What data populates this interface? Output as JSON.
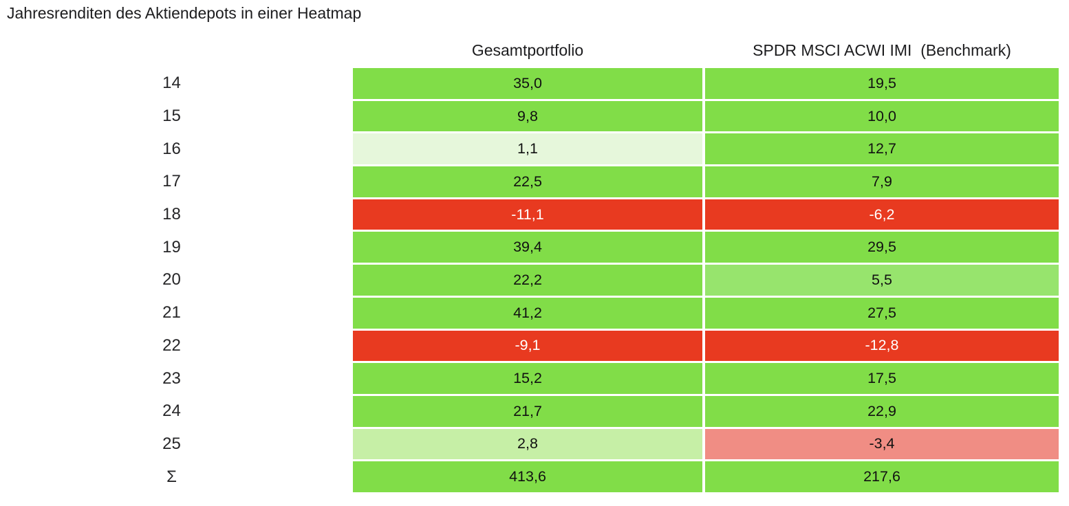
{
  "title": "Jahresrenditen des Aktiendepots in einer Heatmap",
  "palette": {
    "green_full": "#81DD48",
    "green_medium": "#97E46D",
    "green_light": "#C6EFA6",
    "green_pale": "#E6F7DB",
    "red_full": "#E83A20",
    "red_light": "#F08D84",
    "text_dark": "#111111",
    "text_light": "#FFFFFF"
  },
  "table": {
    "columns": [
      "Gesamtportfolio",
      "SPDR MSCI ACWI IMI  (Benchmark)"
    ],
    "rows": [
      {
        "label": "14",
        "cells": [
          {
            "value": "35,0",
            "bg": "#81DD48",
            "fg": "#111111"
          },
          {
            "value": "19,5",
            "bg": "#81DD48",
            "fg": "#111111"
          }
        ]
      },
      {
        "label": "15",
        "cells": [
          {
            "value": "9,8",
            "bg": "#81DD48",
            "fg": "#111111"
          },
          {
            "value": "10,0",
            "bg": "#81DD48",
            "fg": "#111111"
          }
        ]
      },
      {
        "label": "16",
        "cells": [
          {
            "value": "1,1",
            "bg": "#E6F7DB",
            "fg": "#111111"
          },
          {
            "value": "12,7",
            "bg": "#81DD48",
            "fg": "#111111"
          }
        ]
      },
      {
        "label": "17",
        "cells": [
          {
            "value": "22,5",
            "bg": "#81DD48",
            "fg": "#111111"
          },
          {
            "value": "7,9",
            "bg": "#81DD48",
            "fg": "#111111"
          }
        ]
      },
      {
        "label": "18",
        "cells": [
          {
            "value": "-11,1",
            "bg": "#E83A20",
            "fg": "#FFFFFF"
          },
          {
            "value": "-6,2",
            "bg": "#E83A20",
            "fg": "#FFFFFF"
          }
        ]
      },
      {
        "label": "19",
        "cells": [
          {
            "value": "39,4",
            "bg": "#81DD48",
            "fg": "#111111"
          },
          {
            "value": "29,5",
            "bg": "#81DD48",
            "fg": "#111111"
          }
        ]
      },
      {
        "label": "20",
        "cells": [
          {
            "value": "22,2",
            "bg": "#81DD48",
            "fg": "#111111"
          },
          {
            "value": "5,5",
            "bg": "#97E46D",
            "fg": "#111111"
          }
        ]
      },
      {
        "label": "21",
        "cells": [
          {
            "value": "41,2",
            "bg": "#81DD48",
            "fg": "#111111"
          },
          {
            "value": "27,5",
            "bg": "#81DD48",
            "fg": "#111111"
          }
        ]
      },
      {
        "label": "22",
        "cells": [
          {
            "value": "-9,1",
            "bg": "#E83A20",
            "fg": "#FFFFFF"
          },
          {
            "value": "-12,8",
            "bg": "#E83A20",
            "fg": "#FFFFFF"
          }
        ]
      },
      {
        "label": "23",
        "cells": [
          {
            "value": "15,2",
            "bg": "#81DD48",
            "fg": "#111111"
          },
          {
            "value": "17,5",
            "bg": "#81DD48",
            "fg": "#111111"
          }
        ]
      },
      {
        "label": "24",
        "cells": [
          {
            "value": "21,7",
            "bg": "#81DD48",
            "fg": "#111111"
          },
          {
            "value": "22,9",
            "bg": "#81DD48",
            "fg": "#111111"
          }
        ]
      },
      {
        "label": "25",
        "cells": [
          {
            "value": "2,8",
            "bg": "#C6EFA6",
            "fg": "#111111"
          },
          {
            "value": "-3,4",
            "bg": "#F08D84",
            "fg": "#111111"
          }
        ]
      },
      {
        "label": "Σ",
        "cells": [
          {
            "value": "413,6",
            "bg": "#81DD48",
            "fg": "#111111"
          },
          {
            "value": "217,6",
            "bg": "#81DD48",
            "fg": "#111111"
          }
        ]
      }
    ]
  },
  "chart_data": {
    "type": "heatmap",
    "title": "Jahresrenditen des Aktiendepots in einer Heatmap",
    "row_labels": [
      "14",
      "15",
      "16",
      "17",
      "18",
      "19",
      "20",
      "21",
      "22",
      "23",
      "24",
      "25",
      "Σ"
    ],
    "column_labels": [
      "Gesamtportfolio",
      "SPDR MSCI ACWI IMI (Benchmark)"
    ],
    "series": [
      {
        "name": "Gesamtportfolio",
        "values": [
          35.0,
          9.8,
          1.1,
          22.5,
          -11.1,
          39.4,
          22.2,
          41.2,
          -9.1,
          15.2,
          21.7,
          2.8,
          413.6
        ]
      },
      {
        "name": "SPDR MSCI ACWI IMI (Benchmark)",
        "values": [
          19.5,
          10.0,
          12.7,
          7.9,
          -6.2,
          29.5,
          5.5,
          27.5,
          -12.8,
          17.5,
          22.9,
          -3.4,
          217.6
        ]
      }
    ],
    "color_rule": "green = positive return (lighter green = smaller positive), red = negative return (lighter red = small negative)",
    "legend_position": "none",
    "grid": false
  }
}
